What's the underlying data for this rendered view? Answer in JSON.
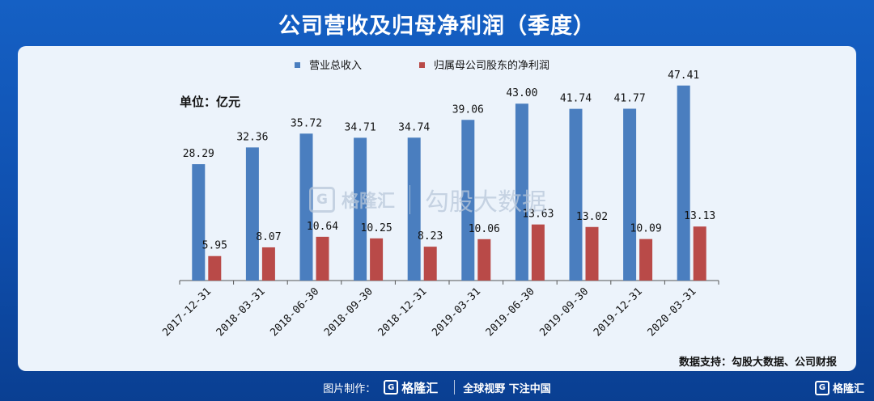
{
  "title": "公司营收及归母净利润（季度）",
  "unit_label": "单位：亿元",
  "source": "数据支持：勾股大数据、公司财报",
  "watermark": {
    "brand": "格隆汇",
    "product": "勾股大数据"
  },
  "footer": {
    "credit": "图片制作：",
    "brand": "格隆汇",
    "slogan": "全球视野 下注中国"
  },
  "corner_logo": "格隆汇",
  "colors": {
    "revenue": "#4a7ebf",
    "profit": "#b94a48",
    "background": "#1560c4",
    "card": "#ecf3fb"
  },
  "chart_data": {
    "type": "bar",
    "categories": [
      "2017-12-31",
      "2018-03-31",
      "2018-06-30",
      "2018-09-30",
      "2018-12-31",
      "2019-03-31",
      "2019-06-30",
      "2019-09-30",
      "2019-12-31",
      "2020-03-31"
    ],
    "series": [
      {
        "name": "营业总收入",
        "values": [
          28.29,
          32.36,
          35.72,
          34.71,
          34.74,
          39.06,
          43.0,
          41.74,
          41.77,
          47.41
        ],
        "labels": [
          "28.29",
          "32.36",
          "35.72",
          "34.71",
          "34.74",
          "39.06",
          "43.00",
          "41.74",
          "41.77",
          "47.41"
        ]
      },
      {
        "name": "归属母公司股东的净利润",
        "values": [
          5.95,
          8.07,
          10.64,
          10.25,
          8.23,
          10.06,
          13.63,
          13.02,
          10.09,
          13.13
        ],
        "labels": [
          "5.95",
          "8.07",
          "10.64",
          "10.25",
          "8.23",
          "10.06",
          "13.63",
          "13.02",
          "10.09",
          "13.13"
        ]
      }
    ],
    "ylim": [
      0,
      57
    ],
    "legend": "top-center",
    "grid": false
  }
}
